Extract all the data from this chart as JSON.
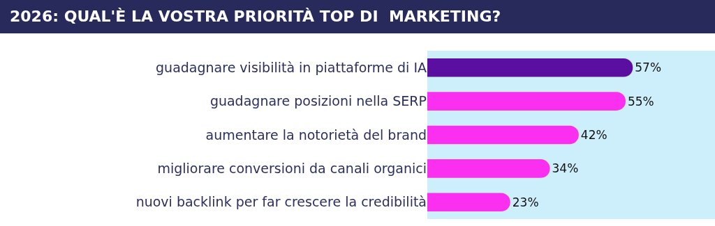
{
  "chart_data": {
    "type": "bar",
    "orientation": "horizontal",
    "title": "2026: QUAL'È LA VOSTRA PRIORITÀ TOP DI  MARKETING?",
    "categories": [
      "guadagnare visibilità in piattaforme di IA",
      "guadagnare posizioni nella SERP",
      "aumentare la notorietà del brand",
      "migliorare conversioni da canali organici",
      "nuovi backlink per far crescere la credibilità"
    ],
    "values": [
      57,
      55,
      42,
      34,
      23
    ],
    "colors": [
      "#5a0fa0",
      "#fb2ff0",
      "#fb2ff0",
      "#fb2ff0",
      "#fb2ff0"
    ],
    "value_labels": [
      "57%",
      "55%",
      "42%",
      "34%",
      "23%"
    ]
  }
}
